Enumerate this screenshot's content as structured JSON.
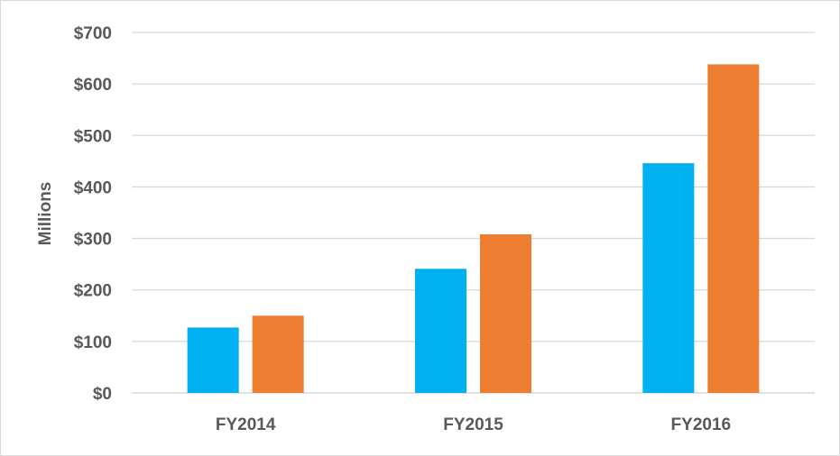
{
  "chart_data": {
    "type": "bar",
    "categories": [
      "FY2014",
      "FY2015",
      "FY2016"
    ],
    "series": [
      {
        "color": "#00B0F0",
        "values": [
          127,
          241,
          446
        ]
      },
      {
        "color": "#ED7D31",
        "values": [
          150,
          308,
          638
        ]
      }
    ],
    "ylabel": "Millions",
    "ylim": [
      0,
      700
    ],
    "yticks": [
      0,
      100,
      200,
      300,
      400,
      500,
      600,
      700
    ],
    "ytick_labels": [
      "$0",
      "$100",
      "$200",
      "$300",
      "$400",
      "$500",
      "$600",
      "$700"
    ],
    "grid": true,
    "legend": "none"
  }
}
